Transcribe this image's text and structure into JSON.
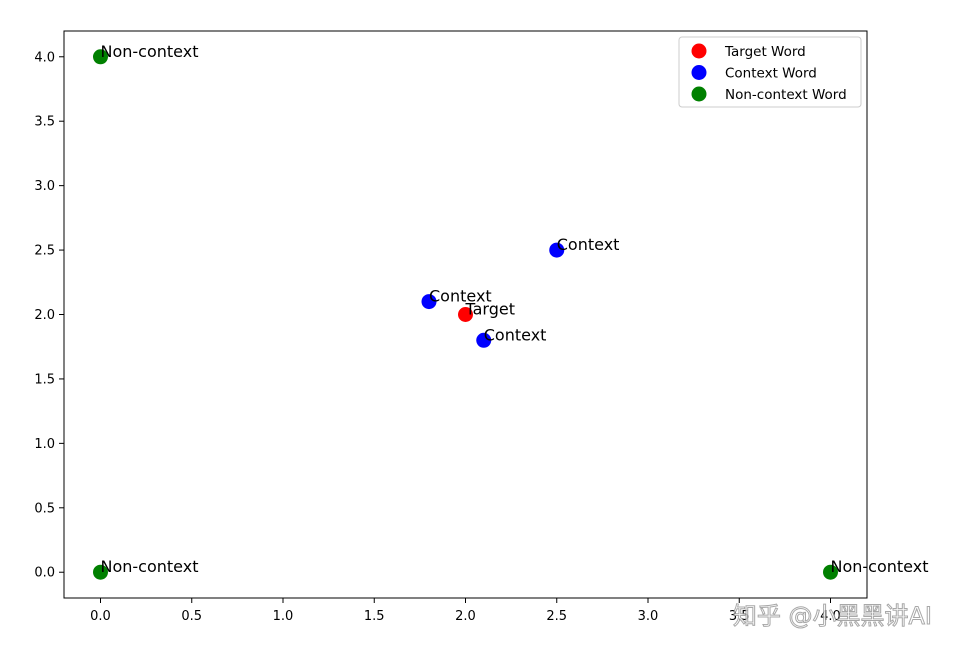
{
  "chart_data": {
    "type": "scatter",
    "title": "",
    "xlabel": "",
    "ylabel": "",
    "xlim": [
      -0.2,
      4.2
    ],
    "ylim": [
      -0.2,
      4.2
    ],
    "xticks": [
      0.0,
      0.5,
      1.0,
      1.5,
      2.0,
      2.5,
      3.0,
      3.5,
      4.0
    ],
    "xtick_labels": [
      "0.0",
      "0.5",
      "1.0",
      "1.5",
      "2.0",
      "2.5",
      "3.0",
      "3.5",
      "4.0"
    ],
    "yticks": [
      0.0,
      0.5,
      1.0,
      1.5,
      2.0,
      2.5,
      3.0,
      3.5,
      4.0
    ],
    "ytick_labels": [
      "0.0",
      "0.5",
      "1.0",
      "1.5",
      "2.0",
      "2.5",
      "3.0",
      "3.5",
      "4.0"
    ],
    "grid": false,
    "legend_position": "top-right",
    "series": [
      {
        "name": "Target Word",
        "color": "#ff0000",
        "points": [
          {
            "x": 2.0,
            "y": 2.0,
            "label": "Target"
          }
        ]
      },
      {
        "name": "Context Word",
        "color": "#0000ff",
        "points": [
          {
            "x": 1.8,
            "y": 2.1,
            "label": "Context"
          },
          {
            "x": 2.1,
            "y": 1.8,
            "label": "Context"
          },
          {
            "x": 2.5,
            "y": 2.5,
            "label": "Context"
          }
        ]
      },
      {
        "name": "Non-context Word",
        "color": "#008000",
        "points": [
          {
            "x": 0.0,
            "y": 4.0,
            "label": "Non-context"
          },
          {
            "x": 0.0,
            "y": 0.0,
            "label": "Non-context"
          },
          {
            "x": 4.0,
            "y": 0.0,
            "label": "Non-context"
          }
        ]
      }
    ]
  },
  "watermark": "知乎 @小黑黑讲AI"
}
